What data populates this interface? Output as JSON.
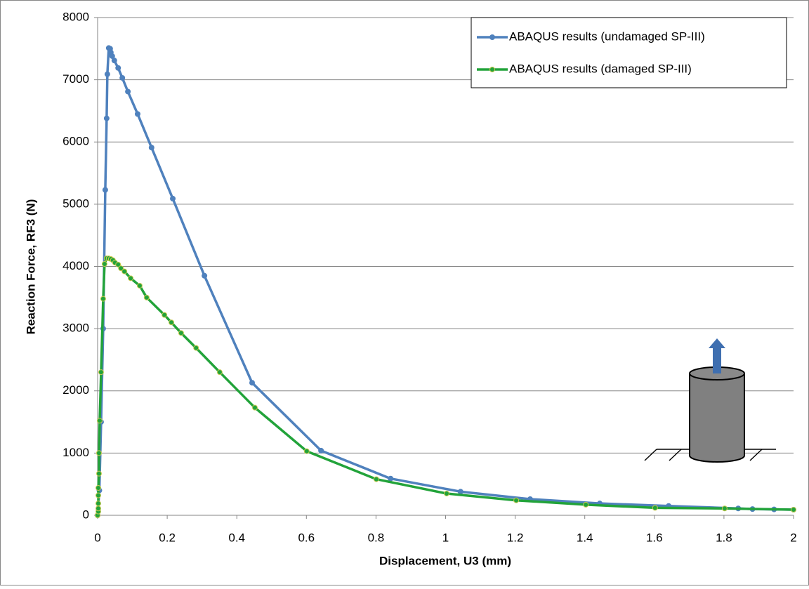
{
  "chart_data": {
    "type": "line",
    "x_label": "Displacement, U3 (mm)",
    "y_label": "Reaction Force, RF3 (N)",
    "xlim": [
      0,
      2
    ],
    "xticks": [
      0,
      0.2,
      0.4,
      0.6,
      0.8,
      1,
      1.2,
      1.4,
      1.6,
      1.8,
      2
    ],
    "ylim": [
      0,
      8000
    ],
    "yticks": [
      0,
      1000,
      2000,
      3000,
      4000,
      5000,
      6000,
      7000,
      8000
    ],
    "grid": true,
    "legend": "top-right",
    "series": [
      {
        "name": "ABAQUS results (undamaged SP-III)",
        "color": "#4f81bd",
        "x": [
          0,
          0.005,
          0.01,
          0.016,
          0.022,
          0.026,
          0.028,
          0.032,
          0.036,
          0.038,
          0.042,
          0.048,
          0.059,
          0.071,
          0.087,
          0.115,
          0.155,
          0.216,
          0.307,
          0.444,
          0.642,
          0.842,
          1.043,
          1.243,
          1.443,
          1.641,
          1.841,
          1.882,
          1.944,
          2
        ],
        "values": [
          0,
          400,
          1500,
          3000,
          5230,
          6380,
          7090,
          7510,
          7500,
          7440,
          7380,
          7310,
          7190,
          7030,
          6810,
          6450,
          5910,
          5090,
          3850,
          2130,
          1040,
          590,
          380,
          260,
          190,
          150,
          110,
          100,
          95,
          90
        ]
      },
      {
        "name": "ABAQUS results (damaged SP-III)",
        "color": "#22a33a",
        "x": [
          0,
          0.002,
          0.002,
          0.002,
          0.002,
          0.002,
          0.004,
          0.004,
          0.006,
          0.01,
          0.016,
          0.02,
          0.026,
          0.032,
          0.038,
          0.044,
          0.05,
          0.059,
          0.067,
          0.077,
          0.095,
          0.121,
          0.141,
          0.192,
          0.212,
          0.24,
          0.283,
          0.351,
          0.452,
          0.601,
          0.801,
          1.003,
          1.203,
          1.403,
          1.602,
          1.802,
          2
        ],
        "values": [
          0,
          60,
          110,
          190,
          320,
          440,
          670,
          1000,
          1520,
          2300,
          3480,
          4040,
          4130,
          4130,
          4120,
          4100,
          4060,
          4030,
          3970,
          3920,
          3810,
          3690,
          3500,
          3220,
          3100,
          2930,
          2690,
          2300,
          1730,
          1030,
          580,
          350,
          240,
          170,
          120,
          110,
          90
        ]
      }
    ]
  }
}
